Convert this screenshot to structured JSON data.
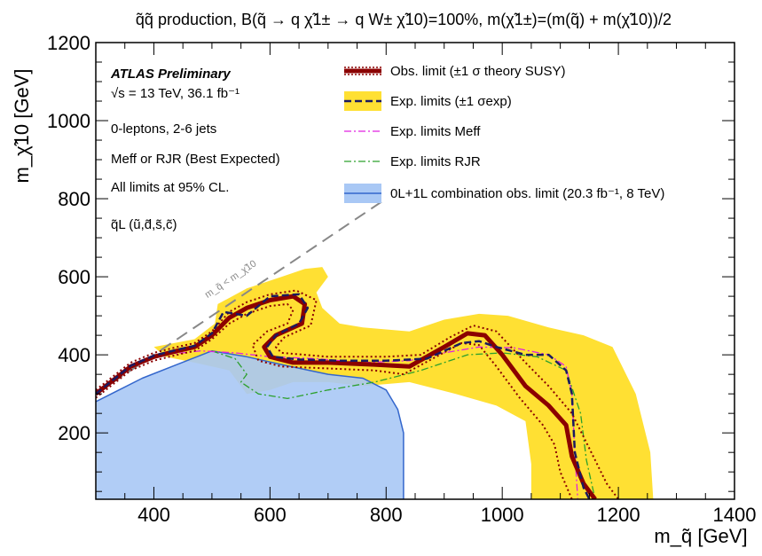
{
  "chart_data": {
    "type": "line",
    "title": "q̃q̃ production, B(q̃ → q χ̃1± → q W± χ̃10)=100%, m(χ̃1±)=(m(q̃) + m(χ̃10))/2",
    "xlabel": "m_q̃ [GeV]",
    "ylabel": "m_χ̃10 [GeV]",
    "xlim": [
      300,
      1400
    ],
    "ylim": [
      30,
      1200
    ],
    "x_ticks": [
      400,
      600,
      800,
      1000,
      1200,
      1400
    ],
    "y_ticks": [
      200,
      400,
      600,
      800,
      1000,
      1200
    ],
    "info_lines": [
      "ATLAS Preliminary",
      "√s = 13 TeV, 36.1 fb⁻¹",
      "0-leptons, 2-6 jets",
      "Meff or RJR (Best Expected)",
      "All limits at 95% CL.",
      "q̃L (ũ,d̃,s̃,c̃)"
    ],
    "diagonal_label": "m_q̃ < m_χ̃10",
    "legend": [
      {
        "label": "Obs. limit (±1 σ theory SUSY)",
        "color": "#8b0000",
        "style": "solid-thick-with-dotted"
      },
      {
        "label": "Exp. limits (±1 σexp)",
        "color": "#ffe033",
        "style": "dashed-on-band"
      },
      {
        "label": "Exp. limits Meff",
        "color": "#e020e0",
        "style": "dash-dot"
      },
      {
        "label": "Exp. limits RJR",
        "color": "#2ca02c",
        "style": "dash-dot"
      },
      {
        "label": "0L+1L combination obs. limit (20.3 fb⁻¹, 8 TeV)",
        "color": "#a9c8f5",
        "style": "filled"
      }
    ],
    "series": [
      {
        "name": "Obs. limit",
        "color": "#8b0000",
        "points": [
          [
            300,
            300
          ],
          [
            360,
            370
          ],
          [
            400,
            395
          ],
          [
            440,
            410
          ],
          [
            470,
            420
          ],
          [
            500,
            450
          ],
          [
            530,
            495
          ],
          [
            560,
            520
          ],
          [
            600,
            540
          ],
          [
            640,
            550
          ],
          [
            660,
            530
          ],
          [
            655,
            480
          ],
          [
            610,
            450
          ],
          [
            590,
            420
          ],
          [
            600,
            395
          ],
          [
            640,
            380
          ],
          [
            700,
            380
          ],
          [
            780,
            375
          ],
          [
            840,
            370
          ],
          [
            900,
            420
          ],
          [
            940,
            455
          ],
          [
            970,
            450
          ],
          [
            1000,
            400
          ],
          [
            1040,
            320
          ],
          [
            1080,
            270
          ],
          [
            1110,
            220
          ],
          [
            1120,
            140
          ],
          [
            1140,
            70
          ],
          [
            1160,
            30
          ]
        ]
      },
      {
        "name": "Obs. limit +1σ theory",
        "color": "#8b0000",
        "points": [
          [
            300,
            310
          ],
          [
            360,
            380
          ],
          [
            400,
            405
          ],
          [
            440,
            420
          ],
          [
            470,
            430
          ],
          [
            500,
            460
          ],
          [
            530,
            510
          ],
          [
            560,
            535
          ],
          [
            600,
            555
          ],
          [
            645,
            565
          ],
          [
            680,
            540
          ],
          [
            670,
            475
          ],
          [
            625,
            445
          ],
          [
            610,
            420
          ],
          [
            620,
            405
          ],
          [
            700,
            395
          ],
          [
            800,
            395
          ],
          [
            860,
            400
          ],
          [
            910,
            445
          ],
          [
            950,
            475
          ],
          [
            990,
            460
          ],
          [
            1040,
            380
          ],
          [
            1080,
            320
          ],
          [
            1120,
            250
          ],
          [
            1150,
            160
          ],
          [
            1180,
            70
          ],
          [
            1200,
            30
          ]
        ]
      },
      {
        "name": "Obs. limit -1σ theory",
        "color": "#8b0000",
        "points": [
          [
            300,
            290
          ],
          [
            360,
            360
          ],
          [
            400,
            385
          ],
          [
            440,
            400
          ],
          [
            470,
            410
          ],
          [
            500,
            440
          ],
          [
            530,
            480
          ],
          [
            560,
            505
          ],
          [
            600,
            525
          ],
          [
            630,
            530
          ],
          [
            640,
            515
          ],
          [
            630,
            480
          ],
          [
            595,
            460
          ],
          [
            570,
            425
          ],
          [
            580,
            385
          ],
          [
            620,
            370
          ],
          [
            700,
            365
          ],
          [
            780,
            360
          ],
          [
            830,
            350
          ],
          [
            880,
            390
          ],
          [
            930,
            430
          ],
          [
            960,
            425
          ],
          [
            990,
            370
          ],
          [
            1030,
            290
          ],
          [
            1070,
            220
          ],
          [
            1090,
            170
          ],
          [
            1100,
            100
          ],
          [
            1120,
            30
          ]
        ]
      },
      {
        "name": "Exp. limits",
        "color": "#1a1a60",
        "points": [
          [
            300,
            300
          ],
          [
            360,
            372
          ],
          [
            400,
            398
          ],
          [
            440,
            413
          ],
          [
            470,
            423
          ],
          [
            500,
            455
          ],
          [
            520,
            510
          ],
          [
            560,
            500
          ],
          [
            600,
            550
          ],
          [
            650,
            555
          ],
          [
            665,
            520
          ],
          [
            650,
            480
          ],
          [
            610,
            450
          ],
          [
            595,
            420
          ],
          [
            605,
            395
          ],
          [
            650,
            388
          ],
          [
            720,
            385
          ],
          [
            800,
            385
          ],
          [
            870,
            390
          ],
          [
            930,
            430
          ],
          [
            960,
            435
          ],
          [
            990,
            420
          ],
          [
            1040,
            400
          ],
          [
            1080,
            400
          ],
          [
            1110,
            360
          ],
          [
            1120,
            300
          ],
          [
            1125,
            150
          ],
          [
            1140,
            60
          ],
          [
            1150,
            30
          ]
        ]
      },
      {
        "name": "Exp. limits Meff",
        "color": "#e020e0",
        "points": [
          [
            420,
            400
          ],
          [
            480,
            410
          ],
          [
            540,
            405
          ],
          [
            600,
            395
          ],
          [
            680,
            390
          ],
          [
            760,
            380
          ],
          [
            840,
            385
          ],
          [
            900,
            405
          ],
          [
            960,
            420
          ],
          [
            1020,
            418
          ],
          [
            1080,
            400
          ],
          [
            1110,
            370
          ],
          [
            1120,
            300
          ],
          [
            1125,
            150
          ],
          [
            1130,
            30
          ]
        ]
      },
      {
        "name": "Exp. limits RJR",
        "color": "#2ca02c",
        "points": [
          [
            500,
            410
          ],
          [
            540,
            390
          ],
          [
            560,
            350
          ],
          [
            550,
            330
          ],
          [
            580,
            300
          ],
          [
            630,
            288
          ],
          [
            700,
            310
          ],
          [
            780,
            330
          ],
          [
            860,
            360
          ],
          [
            940,
            400
          ],
          [
            1000,
            405
          ],
          [
            1060,
            395
          ],
          [
            1110,
            360
          ],
          [
            1135,
            250
          ],
          [
            1145,
            130
          ],
          [
            1160,
            30
          ]
        ]
      },
      {
        "name": "0L+1L combination obs. limit",
        "color": "#3366cc",
        "points": [
          [
            300,
            280
          ],
          [
            380,
            340
          ],
          [
            440,
            375
          ],
          [
            500,
            410
          ],
          [
            560,
            395
          ],
          [
            620,
            375
          ],
          [
            700,
            350
          ],
          [
            760,
            340
          ],
          [
            800,
            310
          ],
          [
            820,
            260
          ],
          [
            830,
            200
          ],
          [
            830,
            30
          ]
        ]
      }
    ],
    "bands": [
      {
        "name": "Exp. limits ±1σexp",
        "color": "#ffe033",
        "points": [
          [
            400,
            420
          ],
          [
            470,
            440
          ],
          [
            505,
            480
          ],
          [
            510,
            530
          ],
          [
            560,
            570
          ],
          [
            620,
            600
          ],
          [
            660,
            620
          ],
          [
            690,
            625
          ],
          [
            700,
            600
          ],
          [
            680,
            560
          ],
          [
            690,
            520
          ],
          [
            720,
            480
          ],
          [
            760,
            470
          ],
          [
            840,
            460
          ],
          [
            900,
            490
          ],
          [
            960,
            505
          ],
          [
            1010,
            500
          ],
          [
            1080,
            470
          ],
          [
            1140,
            450
          ],
          [
            1190,
            420
          ],
          [
            1230,
            300
          ],
          [
            1255,
            150
          ],
          [
            1260,
            30
          ],
          [
            1050,
            30
          ],
          [
            1050,
            120
          ],
          [
            1040,
            230
          ],
          [
            990,
            270
          ],
          [
            920,
            300
          ],
          [
            840,
            330
          ],
          [
            760,
            320
          ],
          [
            700,
            330
          ],
          [
            640,
            330
          ],
          [
            600,
            310
          ],
          [
            560,
            300
          ],
          [
            530,
            360
          ],
          [
            470,
            380
          ],
          [
            420,
            395
          ]
        ]
      },
      {
        "name": "0L+1L combination",
        "color": "#a9c8f5",
        "points": [
          [
            300,
            30
          ],
          [
            300,
            280
          ],
          [
            380,
            340
          ],
          [
            440,
            375
          ],
          [
            500,
            410
          ],
          [
            560,
            395
          ],
          [
            620,
            375
          ],
          [
            700,
            350
          ],
          [
            760,
            340
          ],
          [
            800,
            310
          ],
          [
            820,
            260
          ],
          [
            830,
            200
          ],
          [
            830,
            30
          ]
        ]
      }
    ]
  }
}
